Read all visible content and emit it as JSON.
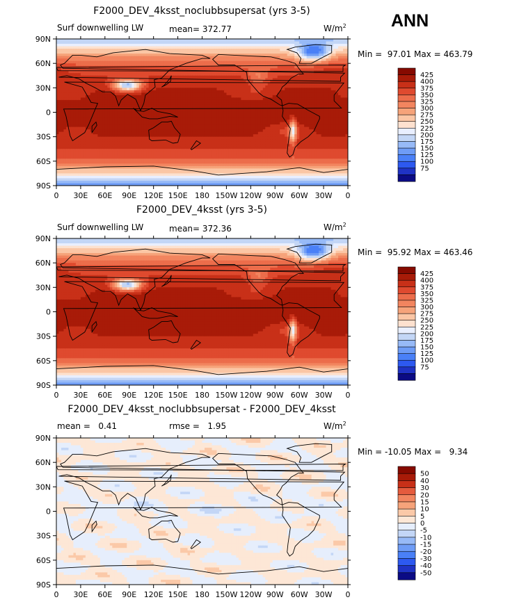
{
  "season_label": "ANN",
  "colors": {
    "sequential": [
      "#0b0b84",
      "#1f32c4",
      "#2d59f0",
      "#4a80f7",
      "#6e9cf6",
      "#97baf7",
      "#c3d6f6",
      "#e9efff",
      "#fde1cf",
      "#fbc6a5",
      "#f6a37a",
      "#f2855f",
      "#ec6d4b",
      "#df4a2f",
      "#c83018",
      "#a81b08",
      "#860a00"
    ],
    "diverging": [
      "#0b0b84",
      "#1f32c4",
      "#2d59f0",
      "#4a80f7",
      "#6e9cf6",
      "#97baf7",
      "#c3d6f6",
      "#e6eefc",
      "#fde7d6",
      "#fbc9a8",
      "#f6a37a",
      "#f2855f",
      "#e55b3d",
      "#c83018",
      "#a81b08",
      "#860a00"
    ],
    "coast": "#000000"
  },
  "chart_data": [
    {
      "type": "heatmap",
      "title": "F2000_DEV_4ksst_noclubbsupersat (yrs 3-5)",
      "left_label": "Surf downwelling LW",
      "mean_label": "mean= 372.77",
      "units": "W/m",
      "units_sup": "2",
      "stats": "Min =  97.01 Max = 463.79",
      "x_ticks": [
        "0",
        "30E",
        "60E",
        "90E",
        "120E",
        "150E",
        "180",
        "150W",
        "120W",
        "90W",
        "60W",
        "30W",
        "0"
      ],
      "y_ticks": [
        "90N",
        "60N",
        "30N",
        "0",
        "30S",
        "60S",
        "90S"
      ],
      "colorbar_levels": [
        "425",
        "400",
        "375",
        "350",
        "325",
        "300",
        "275",
        "250",
        "225",
        "200",
        "175",
        "150",
        "125",
        "100",
        "75"
      ],
      "colorscale": "sequential",
      "mean": 372.77,
      "min": 97.01,
      "max": 463.79
    },
    {
      "type": "heatmap",
      "title": "F2000_DEV_4ksst (yrs 3-5)",
      "left_label": "Surf downwelling LW",
      "mean_label": "mean= 372.36",
      "units": "W/m",
      "units_sup": "2",
      "stats": "Min =  95.92 Max = 463.46",
      "x_ticks": [
        "0",
        "30E",
        "60E",
        "90E",
        "120E",
        "150E",
        "180",
        "150W",
        "120W",
        "90W",
        "60W",
        "30W",
        "0"
      ],
      "y_ticks": [
        "90N",
        "60N",
        "30N",
        "0",
        "30S",
        "60S",
        "90S"
      ],
      "colorbar_levels": [
        "425",
        "400",
        "375",
        "350",
        "325",
        "300",
        "275",
        "250",
        "225",
        "200",
        "175",
        "150",
        "125",
        "100",
        "75"
      ],
      "colorscale": "sequential",
      "mean": 372.36,
      "min": 95.92,
      "max": 463.46
    },
    {
      "type": "heatmap",
      "title": "F2000_DEV_4ksst_noclubbsupersat - F2000_DEV_4ksst",
      "left_label": "mean =   0.41",
      "mean_label": "rmse =   1.95",
      "units": "W/m",
      "units_sup": "2",
      "stats": "Min = -10.05 Max =   9.34",
      "x_ticks": [
        "0",
        "30E",
        "60E",
        "90E",
        "120E",
        "150E",
        "180",
        "150W",
        "120W",
        "90W",
        "60W",
        "30W",
        "0"
      ],
      "y_ticks": [
        "90N",
        "60N",
        "30N",
        "0",
        "30S",
        "60S",
        "90S"
      ],
      "colorbar_levels": [
        "50",
        "40",
        "30",
        "20",
        "15",
        "10",
        "5",
        "0",
        "-5",
        "-10",
        "-15",
        "-20",
        "-30",
        "-40",
        "-50"
      ],
      "colorscale": "diverging",
      "mean": 0.41,
      "rmse": 1.95,
      "min": -10.05,
      "max": 9.34
    }
  ]
}
